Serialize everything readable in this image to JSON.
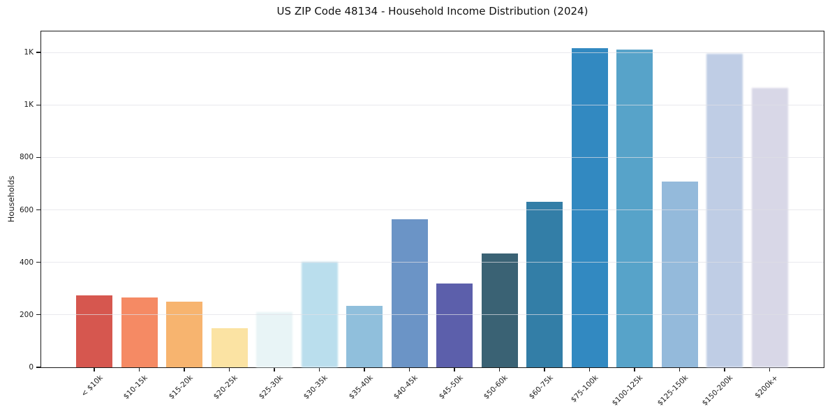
{
  "page": {
    "background": "#ffffff"
  },
  "chart_data": {
    "type": "bar",
    "title": "US ZIP Code 48134 - Household Income Distribution (2024)",
    "xlabel": "",
    "ylabel": "Households",
    "categories": [
      "< $10k",
      "$10-15k",
      "$15-20k",
      "$20-25k",
      "$25-30k",
      "$30-35k",
      "$35-40k",
      "$40-45k",
      "$45-50k",
      "$50-60k",
      "$60-75k",
      "$75-100k",
      "$100-125k",
      "$125-150k",
      "$150-200k",
      "$200k+"
    ],
    "values": [
      274,
      265,
      251,
      150,
      211,
      401,
      233,
      564,
      319,
      435,
      632,
      1217,
      1210,
      708,
      1196,
      1064
    ],
    "bar_colors": [
      "#d6574f",
      "#f58a64",
      "#f7b46f",
      "#fbe3a3",
      "#e8f4f6",
      "#badeed",
      "#90bfdc",
      "#6b94c6",
      "#5c5fab",
      "#3a6274",
      "#337ea7",
      "#3289c1",
      "#57a3c9",
      "#94badb",
      "#bfcde5",
      "#d8d7e7"
    ],
    "soft_bar_indices": [
      4,
      5,
      14,
      15
    ],
    "ylim": [
      0,
      1280
    ],
    "yticks": {
      "values": [
        0,
        200,
        400,
        600,
        800,
        1000,
        1200
      ],
      "labels": [
        "0",
        "200",
        "400",
        "600",
        "800",
        "1K",
        "1K"
      ]
    },
    "grid": {
      "horizontal": true,
      "color": "#e9e9ee",
      "over_bars": true
    },
    "legend": "none",
    "frame_color": "#1a1a1a",
    "text_color": "#1a1a1a"
  }
}
